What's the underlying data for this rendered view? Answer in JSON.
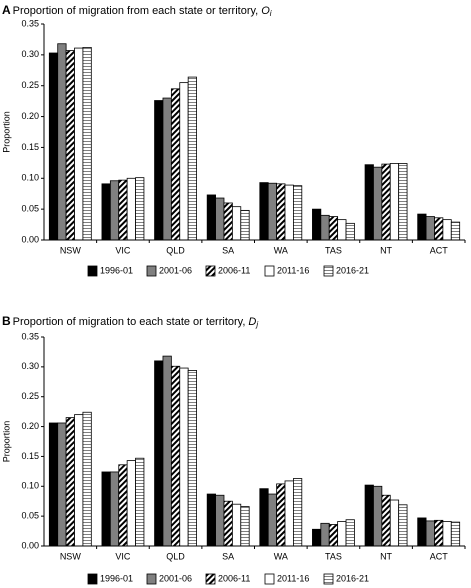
{
  "chart_data": [
    {
      "type": "bar",
      "panel_label": "A",
      "title": "Proportion of migration from each state or territory,",
      "title_symbol": "O",
      "title_subscript": "i",
      "y_label": "Proportion",
      "categories": [
        "NSW",
        "VIC",
        "QLD",
        "SA",
        "WA",
        "TAS",
        "NT",
        "ACT"
      ],
      "series": [
        {
          "name": "1996-01",
          "color": "#000000",
          "pattern": "solid",
          "values": [
            0.303,
            0.091,
            0.226,
            0.073,
            0.093,
            0.05,
            0.122,
            0.042
          ]
        },
        {
          "name": "2001-06",
          "color": "#808080",
          "pattern": "solid",
          "values": [
            0.318,
            0.096,
            0.23,
            0.068,
            0.092,
            0.04,
            0.118,
            0.038
          ]
        },
        {
          "name": "2006-11",
          "color": "#000000",
          "pattern": "diagonal",
          "values": [
            0.307,
            0.097,
            0.245,
            0.06,
            0.091,
            0.038,
            0.123,
            0.036
          ]
        },
        {
          "name": "2011-16",
          "color": "#ffffff",
          "pattern": "solid",
          "values": [
            0.311,
            0.1,
            0.255,
            0.054,
            0.089,
            0.033,
            0.124,
            0.033
          ]
        },
        {
          "name": "2016-21",
          "color": "#808080",
          "pattern": "horizontal",
          "values": [
            0.312,
            0.101,
            0.264,
            0.048,
            0.088,
            0.027,
            0.124,
            0.029
          ]
        }
      ],
      "ylim": [
        0,
        0.35
      ],
      "yticks": [
        {
          "value": 0,
          "label": "0.00"
        },
        {
          "value": 0.05,
          "label": "0.05"
        },
        {
          "value": 0.1,
          "label": "0.10"
        },
        {
          "value": 0.15,
          "label": "0.15"
        },
        {
          "value": 0.2,
          "label": "0.20"
        },
        {
          "value": 0.25,
          "label": "0.25"
        },
        {
          "value": 0.3,
          "label": "0.30"
        },
        {
          "value": 0.35,
          "label": "0.35"
        }
      ],
      "grid": false,
      "legend": "bottom"
    },
    {
      "type": "bar",
      "panel_label": "B",
      "title": "Proportion of migration to each state or territory,",
      "title_symbol": "D",
      "title_subscript": "j",
      "y_label": "Proportion",
      "categories": [
        "NSW",
        "VIC",
        "QLD",
        "SA",
        "WA",
        "TAS",
        "NT",
        "ACT"
      ],
      "series": [
        {
          "name": "1996-01",
          "color": "#000000",
          "pattern": "solid",
          "values": [
            0.206,
            0.124,
            0.31,
            0.087,
            0.096,
            0.028,
            0.102,
            0.047
          ]
        },
        {
          "name": "2001-06",
          "color": "#808080",
          "pattern": "solid",
          "values": [
            0.206,
            0.124,
            0.318,
            0.085,
            0.087,
            0.038,
            0.1,
            0.042
          ]
        },
        {
          "name": "2006-11",
          "color": "#000000",
          "pattern": "diagonal",
          "values": [
            0.215,
            0.136,
            0.301,
            0.075,
            0.104,
            0.036,
            0.085,
            0.043
          ]
        },
        {
          "name": "2011-16",
          "color": "#ffffff",
          "pattern": "solid",
          "values": [
            0.22,
            0.143,
            0.298,
            0.07,
            0.109,
            0.041,
            0.077,
            0.041
          ]
        },
        {
          "name": "2016-21",
          "color": "#808080",
          "pattern": "horizontal",
          "values": [
            0.224,
            0.147,
            0.294,
            0.066,
            0.113,
            0.044,
            0.069,
            0.04
          ]
        }
      ],
      "ylim": [
        0,
        0.35
      ],
      "yticks": [
        {
          "value": 0,
          "label": "0.00"
        },
        {
          "value": 0.05,
          "label": "0.05"
        },
        {
          "value": 0.1,
          "label": "0.10"
        },
        {
          "value": 0.15,
          "label": "0.15"
        },
        {
          "value": 0.2,
          "label": "0.20"
        },
        {
          "value": 0.25,
          "label": "0.25"
        },
        {
          "value": 0.3,
          "label": "0.30"
        },
        {
          "value": 0.35,
          "label": "0.35"
        }
      ],
      "grid": false,
      "legend": "bottom"
    }
  ]
}
